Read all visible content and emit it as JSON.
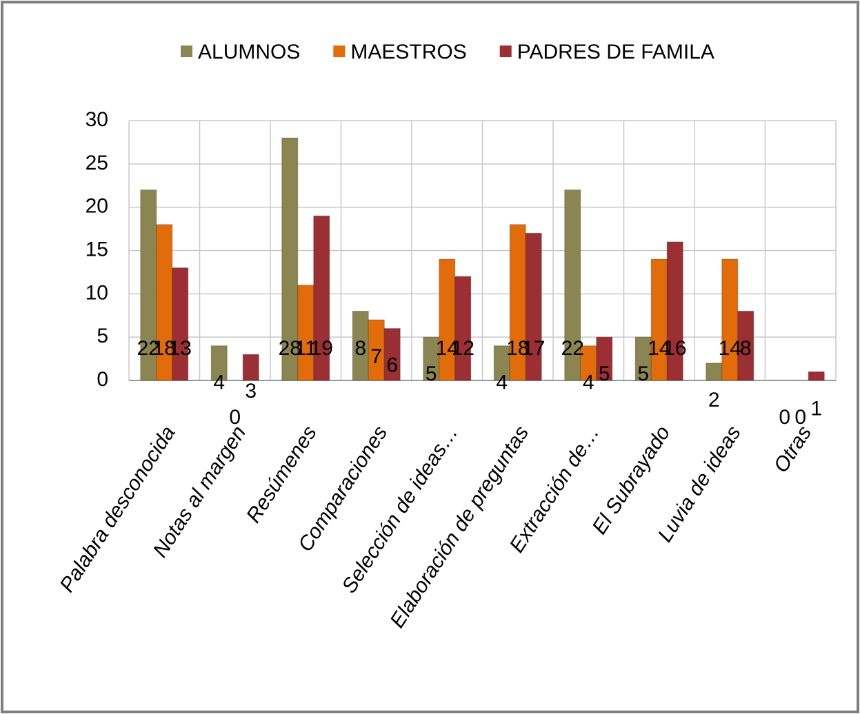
{
  "chart_data": {
    "type": "bar",
    "categories": [
      "Palabra desconocida",
      "Notas al margen",
      "Resúmenes",
      "Comparaciones",
      "Selección de ideas…",
      "Elaboración de preguntas",
      "Extracción de…",
      "El Subrayado",
      "Luvia de ideas",
      "Otras"
    ],
    "series": [
      {
        "name": "ALUMNOS",
        "color": "#8b8552",
        "values": [
          22,
          4,
          28,
          8,
          5,
          4,
          22,
          5,
          2,
          0
        ]
      },
      {
        "name": "MAESTROS",
        "color": "#e36c0a",
        "values": [
          18,
          0,
          11,
          7,
          14,
          18,
          4,
          14,
          14,
          0
        ]
      },
      {
        "name": "PADRES DE FAMILA",
        "color": "#9b2f34",
        "values": [
          13,
          3,
          19,
          6,
          12,
          17,
          5,
          16,
          8,
          1
        ]
      }
    ],
    "ylim": [
      0,
      30
    ],
    "yticks": [
      0,
      5,
      10,
      15,
      20,
      25,
      30
    ],
    "grid": true,
    "legend": "top"
  }
}
